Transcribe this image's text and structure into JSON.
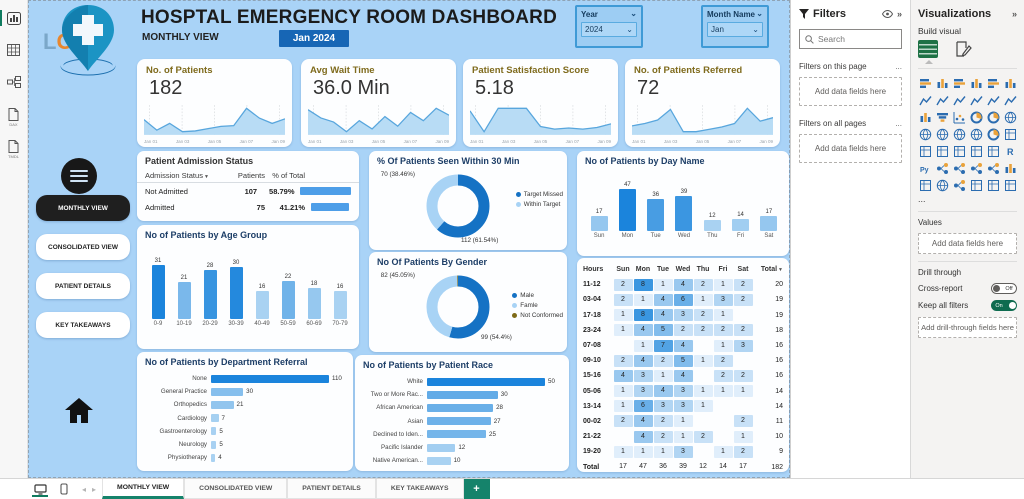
{
  "colors": {
    "canvas": "#a9d3f7",
    "bar_dark": "#1b84dc",
    "bar_light": "#a9d2f2",
    "donut_dark": "#1572c4",
    "donut_light": "#a8d3f5",
    "olive": "#7f6b18",
    "badge_blue": "#1766b5",
    "teal_accent": "#15836b",
    "kpi_title": "#7f6b1d",
    "spark_line": "#58a6dd",
    "spark_fill": "#b8dcf5",
    "heat_light": "#e0eefb",
    "heat_dark": "#3a96e0"
  },
  "left_rail": {
    "icons": [
      {
        "name": "report-view-icon",
        "active": true,
        "label": ""
      },
      {
        "name": "table-view-icon",
        "active": false,
        "label": ""
      },
      {
        "name": "model-view-icon",
        "active": false,
        "label": ""
      },
      {
        "name": "dax-query-view-icon",
        "active": false,
        "label": "DAX"
      },
      {
        "name": "tmdl-view-icon",
        "active": false,
        "label": "TMDL"
      }
    ]
  },
  "header": {
    "title": "HOSPTAL EMERGENCY ROOM DASHBOARD",
    "subtitle": "MONTHLY VIEW",
    "period_badge": "Jan 2024",
    "logo_text": "LOGO"
  },
  "slicers": {
    "year": {
      "label": "Year",
      "value": "2024"
    },
    "month": {
      "label": "Month Name",
      "value": "Jan"
    }
  },
  "sidebar": {
    "nav": [
      {
        "label": "MONTHLY VIEW",
        "active": true
      },
      {
        "label": "CONSOLIDATED VIEW",
        "active": false
      },
      {
        "label": "PATIENT DETAILS",
        "active": false
      },
      {
        "label": "KEY TAKEAWAYS",
        "active": false
      }
    ]
  },
  "kpis": [
    {
      "title": "No. of Patients",
      "value": "182",
      "spark": [
        30,
        16,
        25,
        14,
        15,
        18,
        21,
        22,
        45,
        32,
        25,
        31
      ],
      "x_labels": [
        "Jan 01",
        "Jan 03",
        "Jan 05",
        "Jan 07",
        "Jan 09"
      ]
    },
    {
      "title": "Avg Wait Time",
      "value": "36.0 Min",
      "spark": [
        42,
        36,
        33,
        26,
        34,
        28,
        37,
        30,
        40,
        34,
        43,
        38
      ],
      "x_labels": [
        "Jan 01",
        "Jan 03",
        "Jan 05",
        "Jan 07",
        "Jan 09"
      ]
    },
    {
      "title": "Patient Satisfaction Score",
      "value": "5.18",
      "spark": [
        5.5,
        1.5,
        6,
        6,
        6,
        2.5,
        2,
        2.2,
        2,
        2.3,
        3
      ],
      "x_labels": [
        "Jan 01",
        "Jan 03",
        "Jan 05",
        "Jan 07",
        "Jan 09"
      ]
    },
    {
      "title": "No. of Patients Referred",
      "value": "72",
      "spark": [
        7,
        9,
        12,
        21,
        2,
        2,
        4,
        6,
        9,
        22,
        11,
        14
      ],
      "x_labels": [
        "Jan 01",
        "Jan 03",
        "Jan 05",
        "Jan 07",
        "Jan 09"
      ]
    }
  ],
  "admission_table": {
    "title": "Patient Admission Status",
    "columns": [
      "Admission Status",
      "Patients",
      "% of Total"
    ],
    "rows": [
      {
        "status": "Not Admitted",
        "patients": "107",
        "pct": "58.79%",
        "pct_value": 58.79
      },
      {
        "status": "Admitted",
        "patients": "75",
        "pct": "41.21%",
        "pct_value": 41.21
      }
    ]
  },
  "chart_data": [
    {
      "id": "age_group",
      "type": "bar",
      "title": "No of Patients by Age Group",
      "categories": [
        "0-9",
        "10-19",
        "20-29",
        "30-39",
        "40-49",
        "50-59",
        "60-69",
        "70-79"
      ],
      "values": [
        31,
        21,
        28,
        30,
        16,
        22,
        18,
        16
      ]
    },
    {
      "id": "day_name",
      "type": "bar",
      "title": "No of Patients by Day Name",
      "categories": [
        "Sun",
        "Mon",
        "Tue",
        "Wed",
        "Thu",
        "Fri",
        "Sat"
      ],
      "values": [
        17,
        47,
        36,
        39,
        12,
        14,
        17
      ]
    },
    {
      "id": "department_referral",
      "type": "bar",
      "orientation": "horizontal",
      "title": "No of Patients by Department Referral",
      "categories": [
        "None",
        "General Practice",
        "Orthopedics",
        "Cardiology",
        "Gastroenterology",
        "Neurology",
        "Physiotherapy"
      ],
      "values": [
        110,
        30,
        21,
        7,
        5,
        5,
        4
      ]
    },
    {
      "id": "patient_race",
      "type": "bar",
      "orientation": "horizontal",
      "title": "No of Patients by Patient Race",
      "categories": [
        "White",
        "Two or More Rac...",
        "African American",
        "Asian",
        "Declined to Iden...",
        "Pacific Islander",
        "Native American..."
      ],
      "values": [
        50,
        30,
        28,
        27,
        25,
        12,
        10
      ]
    },
    {
      "id": "seen_within_30",
      "type": "pie",
      "title": "% Of Patients Seen Within 30 Min",
      "slices": [
        {
          "name": "Target Missed",
          "value": 112,
          "pct": "61.54%"
        },
        {
          "name": "Within Target",
          "value": 70,
          "pct": "38.46%"
        }
      ],
      "callouts": [
        "70 (38.46%)",
        "112 (61.54%)"
      ]
    },
    {
      "id": "gender",
      "type": "pie",
      "title": "No Of Patients By Gender",
      "slices": [
        {
          "name": "Male",
          "value": 99,
          "pct": "54.4%"
        },
        {
          "name": "Famle",
          "value": 82,
          "pct": "45.05%"
        },
        {
          "name": "Not Conformed",
          "value": 1,
          "pct": ""
        }
      ],
      "callouts": [
        "82 (45.05%)",
        "99 (54.4%)"
      ]
    },
    {
      "id": "hourly_heatmap",
      "type": "heatmap",
      "columns": [
        "Hours",
        "Sun",
        "Mon",
        "Tue",
        "Wed",
        "Thu",
        "Fri",
        "Sat",
        "Total"
      ],
      "rows": [
        {
          "hours": "11-12",
          "cells": [
            2,
            8,
            1,
            4,
            2,
            1,
            2
          ],
          "total": 20
        },
        {
          "hours": "03-04",
          "cells": [
            2,
            1,
            4,
            6,
            1,
            3,
            2
          ],
          "total": 19
        },
        {
          "hours": "17-18",
          "cells": [
            1,
            8,
            4,
            3,
            2,
            1,
            null
          ],
          "total": 19
        },
        {
          "hours": "23-24",
          "cells": [
            1,
            4,
            5,
            2,
            2,
            2,
            2
          ],
          "total": 18
        },
        {
          "hours": "07-08",
          "cells": [
            null,
            1,
            7,
            4,
            null,
            1,
            3
          ],
          "total": 16
        },
        {
          "hours": "09-10",
          "cells": [
            2,
            4,
            2,
            5,
            1,
            2,
            null
          ],
          "total": 16
        },
        {
          "hours": "15-16",
          "cells": [
            4,
            3,
            1,
            4,
            null,
            2,
            2
          ],
          "total": 16
        },
        {
          "hours": "05-06",
          "cells": [
            1,
            3,
            4,
            3,
            1,
            1,
            1
          ],
          "total": 14
        },
        {
          "hours": "13-14",
          "cells": [
            1,
            6,
            3,
            3,
            1,
            null,
            null
          ],
          "total": 14
        },
        {
          "hours": "00-02",
          "cells": [
            2,
            4,
            2,
            1,
            null,
            null,
            2
          ],
          "total": 11
        },
        {
          "hours": "21-22",
          "cells": [
            null,
            4,
            2,
            1,
            2,
            null,
            1
          ],
          "total": 10
        },
        {
          "hours": "19-20",
          "cells": [
            1,
            1,
            1,
            3,
            null,
            1,
            2
          ],
          "total": 9
        }
      ],
      "grand_total_row": {
        "hours": "Total",
        "cells": [
          17,
          47,
          36,
          39,
          12,
          14,
          17
        ],
        "total": 182
      }
    }
  ],
  "filters_pane": {
    "title": "Filters",
    "search_placeholder": "Search",
    "ellipsis": "...",
    "sections": [
      {
        "label": "Filters on this page",
        "placeholder": "Add data fields here"
      },
      {
        "label": "Filters on all pages",
        "placeholder": "Add data fields here"
      }
    ]
  },
  "viz_pane": {
    "title": "Visualizations",
    "build_visual_label": "Build visual",
    "more_label": "...",
    "icons": [
      "stacked-bar-chart",
      "stacked-column-chart",
      "clustered-bar-chart",
      "clustered-column-chart",
      "100-stacked-bar-chart",
      "100-stacked-column-chart",
      "line-chart",
      "area-chart",
      "stacked-area-chart",
      "line-and-stacked-column-chart",
      "line-and-clustered-column-chart",
      "ribbon-chart",
      "waterfall-chart",
      "funnel-chart",
      "scatter-chart",
      "pie-chart",
      "donut-chart",
      "treemap",
      "map",
      "filled-map",
      "shape-map",
      "azure-map",
      "gauge",
      "card",
      "multi-row-card",
      "kpi",
      "slicer",
      "table",
      "matrix",
      "r-script-visual",
      "python-visual",
      "key-influencers",
      "decomposition-tree",
      "qa-visual",
      "smart-narrative",
      "goals-metrics",
      "paginated-report",
      "arcgis-map",
      "power-automate",
      "text-box",
      "pin-visual",
      "get-more-visuals"
    ],
    "values_label": "Values",
    "values_placeholder": "Add data fields here",
    "drill_label": "Drill through",
    "cross_report_label": "Cross-report",
    "cross_report_state": "Off",
    "keep_filters_label": "Keep all filters",
    "keep_filters_state": "On",
    "drill_placeholder": "Add drill-through fields here"
  },
  "bottom_bar": {
    "tabs": [
      {
        "label": "MONTHLY VIEW",
        "active": true
      },
      {
        "label": "CONSOLIDATED VIEW",
        "active": false
      },
      {
        "label": "PATIENT DETAILS",
        "active": false
      },
      {
        "label": "KEY TAKEAWAYS",
        "active": false
      }
    ],
    "add_page_label": "+"
  }
}
